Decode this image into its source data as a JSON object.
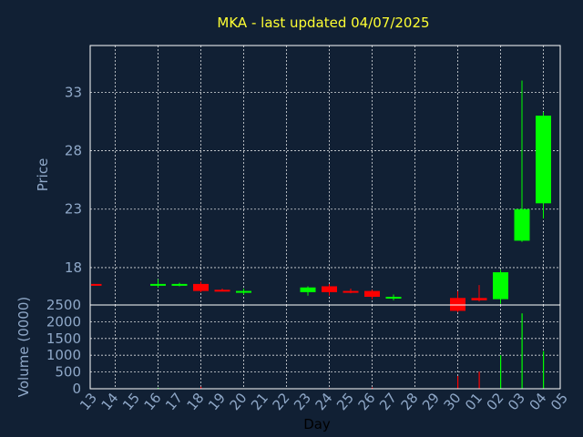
{
  "chart_data": [
    {
      "type": "candlestick",
      "title": "MKA - last updated 04/07/2025",
      "ylabel": "Price",
      "ylim": [
        14.8,
        37.0
      ],
      "yticks": [
        18,
        23,
        28,
        33
      ],
      "grid": true,
      "colors": {
        "up": "#00ff00",
        "down": "#ff0000",
        "background": "#112034",
        "title": "#ffff33",
        "axis_text": "#8fa8c8"
      },
      "candles": [
        {
          "day": "13",
          "open": 16.6,
          "high": 16.6,
          "low": 16.5,
          "close": 16.5
        },
        {
          "day": "16",
          "open": 16.5,
          "high": 17.0,
          "low": 16.3,
          "close": 16.6
        },
        {
          "day": "17",
          "open": 16.5,
          "high": 16.7,
          "low": 16.4,
          "close": 16.6
        },
        {
          "day": "18",
          "open": 16.6,
          "high": 16.8,
          "low": 15.9,
          "close": 16.0
        },
        {
          "day": "19",
          "open": 16.1,
          "high": 16.2,
          "low": 16.0,
          "close": 16.0
        },
        {
          "day": "20",
          "open": 15.9,
          "high": 16.2,
          "low": 15.7,
          "close": 16.0
        },
        {
          "day": "23",
          "open": 15.9,
          "high": 16.4,
          "low": 15.6,
          "close": 16.3
        },
        {
          "day": "24",
          "open": 16.4,
          "high": 16.6,
          "low": 15.6,
          "close": 15.9
        },
        {
          "day": "25",
          "open": 16.0,
          "high": 16.2,
          "low": 15.8,
          "close": 15.9
        },
        {
          "day": "26",
          "open": 16.0,
          "high": 16.1,
          "low": 15.3,
          "close": 15.5
        },
        {
          "day": "27",
          "open": 15.4,
          "high": 15.7,
          "low": 15.2,
          "close": 15.5
        },
        {
          "day": "30",
          "open": 15.4,
          "high": 16.0,
          "low": 14.2,
          "close": 14.3
        },
        {
          "day": "01",
          "open": 15.4,
          "high": 16.5,
          "low": 15.1,
          "close": 15.2
        },
        {
          "day": "02",
          "open": 15.3,
          "high": 17.8,
          "low": 14.9,
          "close": 17.6
        },
        {
          "day": "03",
          "open": 20.3,
          "high": 34.0,
          "low": 20.2,
          "close": 23.0
        },
        {
          "day": "04",
          "open": 23.5,
          "high": 31.3,
          "low": 22.2,
          "close": 31.0
        }
      ]
    },
    {
      "type": "bar",
      "xlabel": "Day",
      "ylabel": "Volume (0000)",
      "ylim": [
        0,
        2500
      ],
      "yticks": [
        0,
        500,
        1000,
        1500,
        2000,
        2500
      ],
      "categories": [
        "13",
        "14",
        "15",
        "16",
        "17",
        "18",
        "19",
        "20",
        "21",
        "22",
        "23",
        "24",
        "25",
        "26",
        "27",
        "28",
        "29",
        "30",
        "01",
        "02",
        "03",
        "04",
        "05"
      ],
      "values": [
        5,
        0,
        0,
        30,
        15,
        60,
        10,
        10,
        0,
        0,
        10,
        20,
        10,
        40,
        10,
        0,
        0,
        380,
        510,
        1000,
        2250,
        1120,
        0
      ],
      "bar_colors": [
        "green",
        "none",
        "none",
        "green",
        "green",
        "red",
        "red",
        "green",
        "none",
        "none",
        "green",
        "red",
        "red",
        "red",
        "green",
        "none",
        "none",
        "red",
        "red",
        "green",
        "green",
        "green",
        "none"
      ]
    }
  ]
}
